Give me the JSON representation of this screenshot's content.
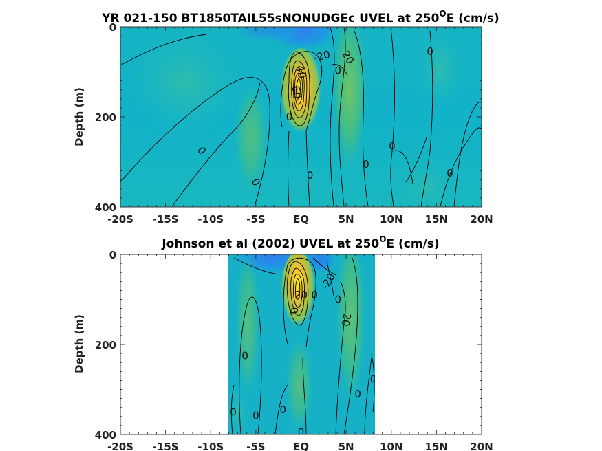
{
  "chart_data": [
    {
      "type": "heatmap",
      "variant": "filled-contour",
      "title_main": "YR 021-150 BT1850TAIL55sNONUDGEc UVEL at 250",
      "title_sup": "O",
      "title_end": "E (cm/s)",
      "ylabel": "Depth (m)",
      "x_ticks": [
        "-20S",
        "-15S",
        "-10S",
        "-5S",
        "EQ",
        "5N",
        "10N",
        "15N",
        "20N"
      ],
      "x_tick_values": [
        -20,
        -15,
        -10,
        -5,
        0,
        5,
        10,
        15,
        20
      ],
      "xlim": [
        -20,
        20
      ],
      "y_ticks": [
        "0",
        "200",
        "400"
      ],
      "y_tick_values": [
        0,
        200,
        400
      ],
      "ylim": [
        400,
        0
      ],
      "data_extent_lat": [
        -20,
        20
      ],
      "colormap": "parula",
      "undercurrent_core": {
        "lat": 0,
        "depth": 115,
        "peak_cms": 100
      },
      "contour_labels": [
        {
          "text": "-20",
          "lat": 2.3,
          "depth": 65,
          "rotate": -15
        },
        {
          "text": "20",
          "lat": 5.2,
          "depth": 68,
          "rotate": 60
        },
        {
          "text": "0",
          "lat": 14.3,
          "depth": 55,
          "rotate": 0
        },
        {
          "text": "0",
          "lat": 4.1,
          "depth": 97,
          "rotate": 0
        },
        {
          "text": "60",
          "lat": -0.5,
          "depth": 145,
          "rotate": 80
        },
        {
          "text": "40",
          "lat": 0,
          "depth": 100,
          "rotate": 80
        },
        {
          "text": "0",
          "lat": -1.3,
          "depth": 200,
          "rotate": 0
        },
        {
          "text": "0",
          "lat": -11,
          "depth": 275,
          "rotate": 60
        },
        {
          "text": "0",
          "lat": -5,
          "depth": 345,
          "rotate": 60
        },
        {
          "text": "0",
          "lat": 1,
          "depth": 330,
          "rotate": 0
        },
        {
          "text": "0",
          "lat": 7.2,
          "depth": 305,
          "rotate": 0
        },
        {
          "text": "0",
          "lat": 10.1,
          "depth": 265,
          "rotate": 0
        },
        {
          "text": "0",
          "lat": 16.5,
          "depth": 325,
          "rotate": 0
        }
      ]
    },
    {
      "type": "heatmap",
      "variant": "filled-contour",
      "title_main": "Johnson et al (2002) UVEL at 250",
      "title_sup": "O",
      "title_end": "E (cm/s)",
      "ylabel": "Depth (m)",
      "x_ticks": [
        "-20S",
        "-15S",
        "-10S",
        "-5S",
        "EQ",
        "5N",
        "10N",
        "15N",
        "20N"
      ],
      "x_tick_values": [
        -20,
        -15,
        -10,
        -5,
        0,
        5,
        10,
        15,
        20
      ],
      "xlim": [
        -20,
        20
      ],
      "y_ticks": [
        "0",
        "200",
        "400"
      ],
      "y_tick_values": [
        0,
        200,
        400
      ],
      "ylim": [
        400,
        0
      ],
      "data_extent_lat": [
        -8,
        8.3
      ],
      "colormap": "parula",
      "undercurrent_core": {
        "lat": 0,
        "depth": 70,
        "peak_cms": 100
      },
      "contour_labels": [
        {
          "text": "-20",
          "lat": 3,
          "depth": 60,
          "rotate": -60
        },
        {
          "text": "20",
          "lat": 0,
          "depth": 90,
          "rotate": 0
        },
        {
          "text": "0",
          "lat": -0.8,
          "depth": 125,
          "rotate": 80
        },
        {
          "text": "0",
          "lat": 1.5,
          "depth": 90,
          "rotate": 0
        },
        {
          "text": "0",
          "lat": 4.1,
          "depth": 100,
          "rotate": 0
        },
        {
          "text": "20",
          "lat": 5,
          "depth": 145,
          "rotate": 100
        },
        {
          "text": "0",
          "lat": -6.2,
          "depth": 225,
          "rotate": 0
        },
        {
          "text": "0",
          "lat": 8,
          "depth": 277,
          "rotate": 0
        },
        {
          "text": "0",
          "lat": 6.3,
          "depth": 310,
          "rotate": 0
        },
        {
          "text": "0",
          "lat": -7.5,
          "depth": 350,
          "rotate": 0
        },
        {
          "text": "0",
          "lat": -5,
          "depth": 358,
          "rotate": 0
        },
        {
          "text": "0",
          "lat": -2,
          "depth": 345,
          "rotate": 0
        },
        {
          "text": "0",
          "lat": 0,
          "depth": 395,
          "rotate": 0
        }
      ]
    }
  ]
}
